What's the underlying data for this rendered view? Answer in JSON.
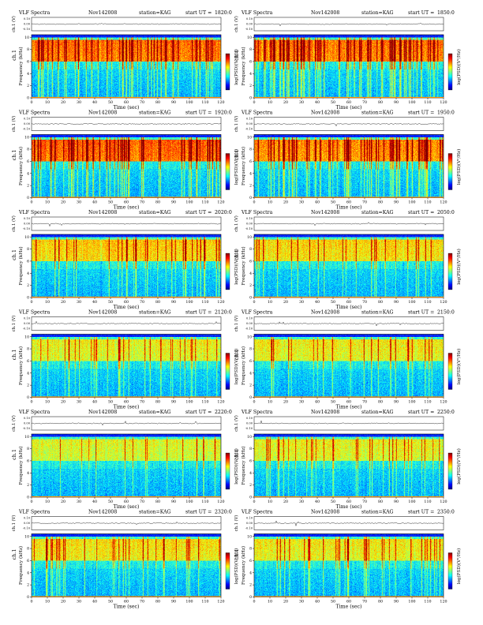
{
  "page": {
    "header_title": "VLF Spectra",
    "date": "Nov142008",
    "station": "station=KAG",
    "ut_prefix": "start  UT  ="
  },
  "chart_data": {
    "type": "heatmap",
    "xlabel": "Time  (sec)",
    "ylabel": "Frequency  (kHz)",
    "ch_label": "ch.1",
    "trace_ylabel": "ch.1 (V)",
    "colorbar_label": "log(PSD)(V²/Hz)",
    "x_ticks": [
      "0",
      "10",
      "20",
      "30",
      "40",
      "50",
      "60",
      "70",
      "80",
      "90",
      "100",
      "110",
      "120"
    ],
    "y_ticks": [
      "0",
      "2",
      "4",
      "6",
      "8",
      "10"
    ],
    "trace_ticks": [
      "0.10",
      "0.00",
      "-0.10"
    ],
    "xlim": [
      0,
      120
    ],
    "ylim": [
      0,
      10
    ],
    "colormap": [
      "#00007f",
      "#0000ff",
      "#007fff",
      "#00ffff",
      "#7fff7f",
      "#ffff00",
      "#ff7f00",
      "#ff0000",
      "#7f0000"
    ],
    "panels": [
      {
        "start_ut": "1820:0",
        "activity": 0.9
      },
      {
        "start_ut": "1850:0",
        "activity": 0.85
      },
      {
        "start_ut": "1920:0",
        "activity": 0.95
      },
      {
        "start_ut": "1950:0",
        "activity": 0.8
      },
      {
        "start_ut": "2020:0",
        "activity": 0.55
      },
      {
        "start_ut": "2050:0",
        "activity": 0.5
      },
      {
        "start_ut": "2120:0",
        "activity": 0.35
      },
      {
        "start_ut": "2150:0",
        "activity": 0.4
      },
      {
        "start_ut": "2220:0",
        "activity": 0.3
      },
      {
        "start_ut": "2250:0",
        "activity": 0.35
      },
      {
        "start_ut": "2320:0",
        "activity": 0.45
      },
      {
        "start_ut": "2350:0",
        "activity": 0.4
      }
    ]
  }
}
